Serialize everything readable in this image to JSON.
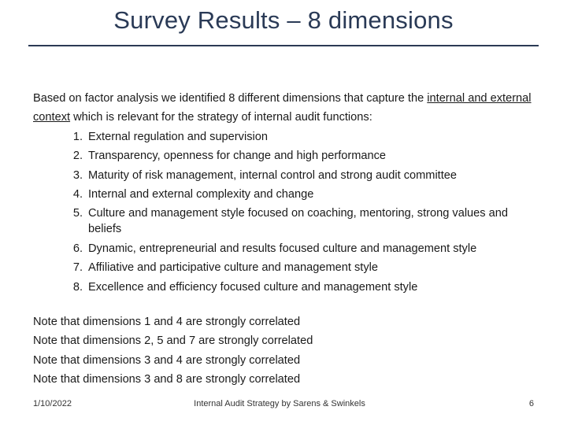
{
  "title": "Survey Results – 8 dimensions",
  "intro": {
    "before": "Based on factor analysis we identified 8 different dimensions that capture the ",
    "underlined": "internal and external context",
    "after": " which is relevant for the strategy of internal audit functions:"
  },
  "dimensions": [
    {
      "num": "1.",
      "text": "External regulation and supervision"
    },
    {
      "num": "2.",
      "text": "Transparency, openness for change and high performance"
    },
    {
      "num": "3.",
      "text": "Maturity of risk management, internal control and strong audit committee"
    },
    {
      "num": "4.",
      "text": "Internal and external complexity and change"
    },
    {
      "num": "5.",
      "text": "Culture and management style focused on coaching, mentoring, strong values and beliefs"
    },
    {
      "num": "6.",
      "text": "Dynamic, entrepreneurial and results focused culture and management style"
    },
    {
      "num": "7.",
      "text": "Affiliative and participative culture and management style"
    },
    {
      "num": "8.",
      "text": "Excellence and efficiency focused culture and management style"
    }
  ],
  "notes": [
    "Note that dimensions 1 and 4 are strongly correlated",
    "Note that dimensions 2, 5 and 7 are strongly correlated",
    "Note that dimensions 3 and 4 are strongly correlated",
    "Note that dimensions 3 and 8 are strongly correlated"
  ],
  "footer": {
    "date": "1/10/2022",
    "center": "Internal Audit Strategy by Sarens & Swinkels",
    "page": "6"
  }
}
